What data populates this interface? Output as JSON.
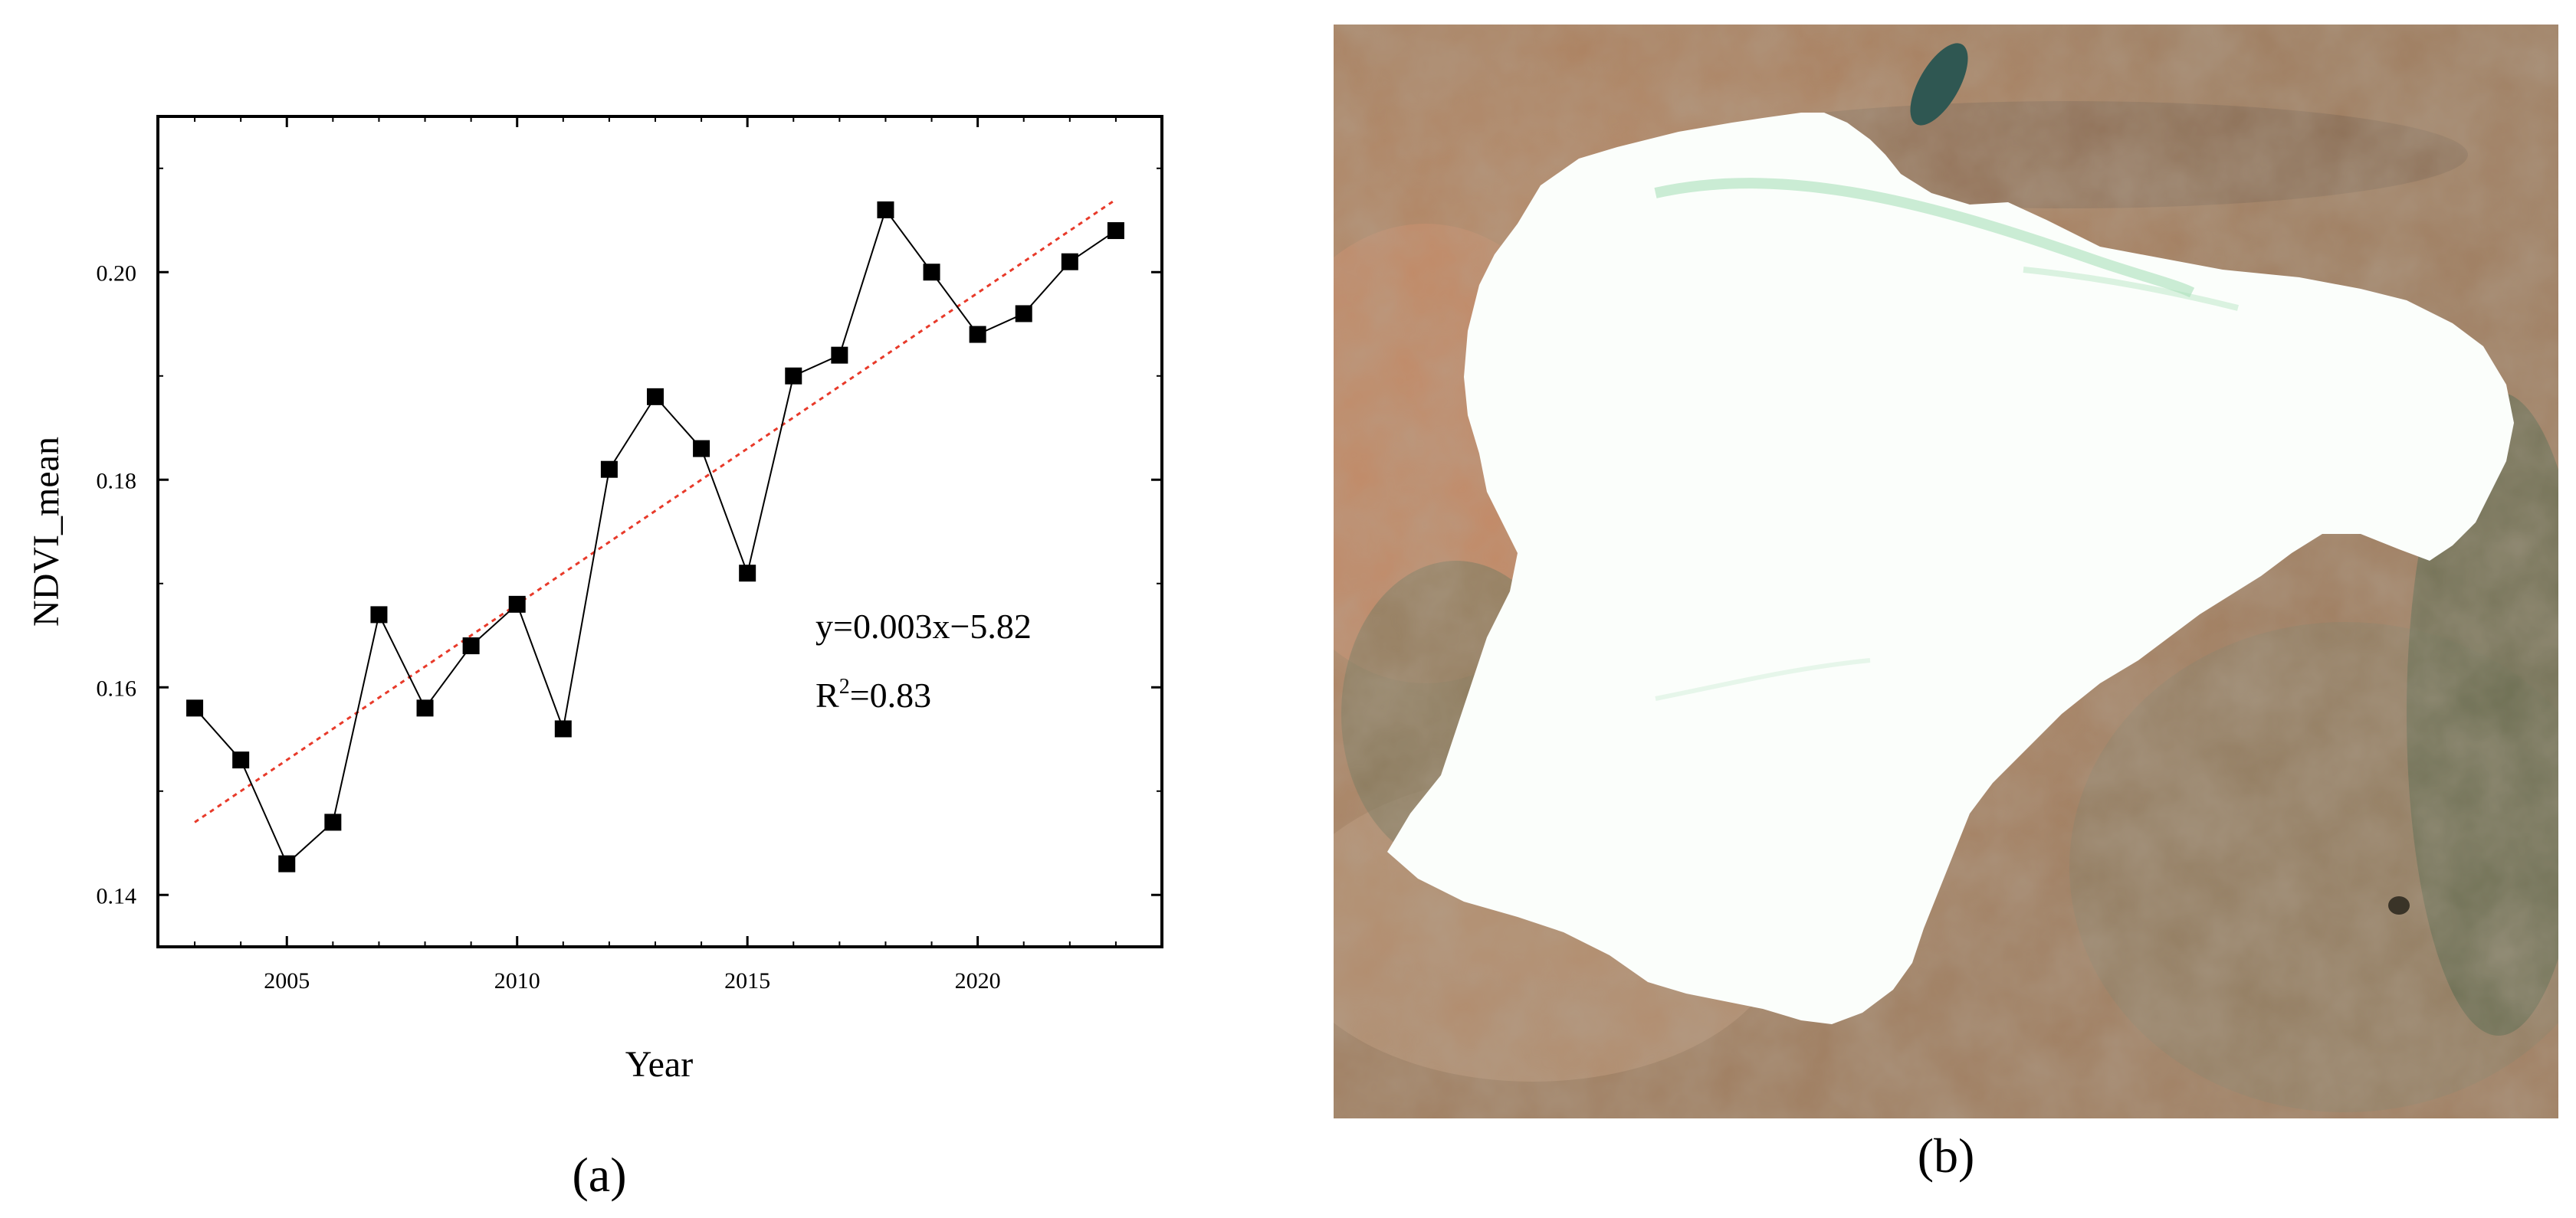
{
  "chart_data": {
    "type": "line",
    "xlabel": "Year",
    "ylabel": "NDVI_mean",
    "xlim": [
      2002.2,
      2024.0
    ],
    "ylim": [
      0.135,
      0.215
    ],
    "x_ticks": [
      2005,
      2010,
      2015,
      2020
    ],
    "y_ticks": [
      0.14,
      0.16,
      0.18,
      0.2
    ],
    "y_tick_labels": [
      "0.14",
      "0.16",
      "0.18",
      "0.20"
    ],
    "x": [
      2003,
      2004,
      2005,
      2006,
      2007,
      2008,
      2009,
      2010,
      2011,
      2012,
      2013,
      2014,
      2015,
      2016,
      2017,
      2018,
      2019,
      2020,
      2021,
      2022,
      2023
    ],
    "series": [
      {
        "values": [
          0.158,
          0.153,
          0.143,
          0.147,
          0.167,
          0.158,
          0.164,
          0.168,
          0.156,
          0.181,
          0.188,
          0.183,
          0.171,
          0.19,
          0.192,
          0.206,
          0.2,
          0.194,
          0.196,
          0.201,
          0.204
        ],
        "color": "#000000",
        "marker": "square"
      }
    ],
    "trendline": {
      "x": [
        2003,
        2023
      ],
      "y": [
        0.147,
        0.207
      ],
      "color": "#e83a2a",
      "style": "dotted"
    },
    "equation_text": "y=0.003x−5.82",
    "r2_prefix": "R",
    "r2_sup": "2",
    "r2_value": "=0.83",
    "grid": false
  },
  "panels": {
    "a_label": "(a)",
    "b_label": "(b)"
  }
}
